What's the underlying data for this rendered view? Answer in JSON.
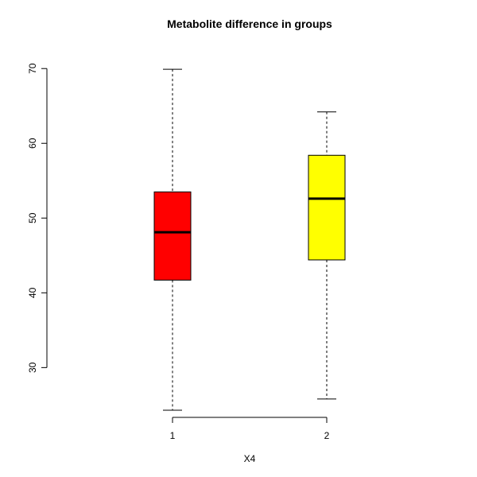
{
  "chart_data": {
    "type": "boxplot",
    "title": "Metabolite difference in groups",
    "xlabel": "X4",
    "ylabel": "",
    "ylim": [
      22.7,
      71.3
    ],
    "yticks": [
      30,
      40,
      50,
      60,
      70
    ],
    "categories": [
      "1",
      "2"
    ],
    "boxes": [
      {
        "category": "1",
        "min": 24.3,
        "q1": 41.7,
        "median": 48.1,
        "q3": 53.5,
        "max": 69.9,
        "color": "#ff0000"
      },
      {
        "category": "2",
        "min": 25.8,
        "q1": 44.4,
        "median": 52.6,
        "q3": 58.4,
        "max": 64.2,
        "color": "#ffff00"
      }
    ],
    "grid": false,
    "legend": "none"
  }
}
